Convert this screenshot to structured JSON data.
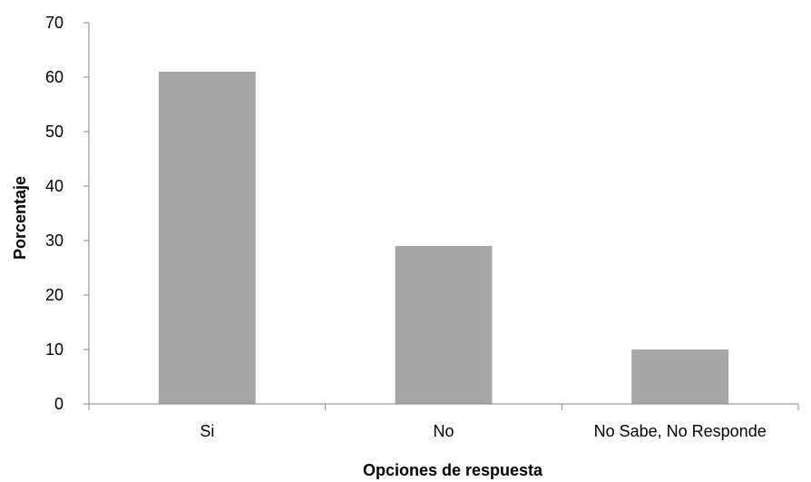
{
  "chart_data": {
    "type": "bar",
    "categories": [
      "Si",
      "No",
      "No Sabe, No Responde"
    ],
    "values": [
      61,
      29,
      10
    ],
    "title": "",
    "xlabel": "Opciones de respuesta",
    "ylabel": "Porcentaje",
    "ylim": [
      0,
      70
    ],
    "yticks": [
      0,
      10,
      20,
      30,
      40,
      50,
      60,
      70
    ],
    "grid": false,
    "legend": "none",
    "colors": {
      "bar": "#a6a6a6",
      "axis": "#868686",
      "text": "#000000"
    }
  }
}
